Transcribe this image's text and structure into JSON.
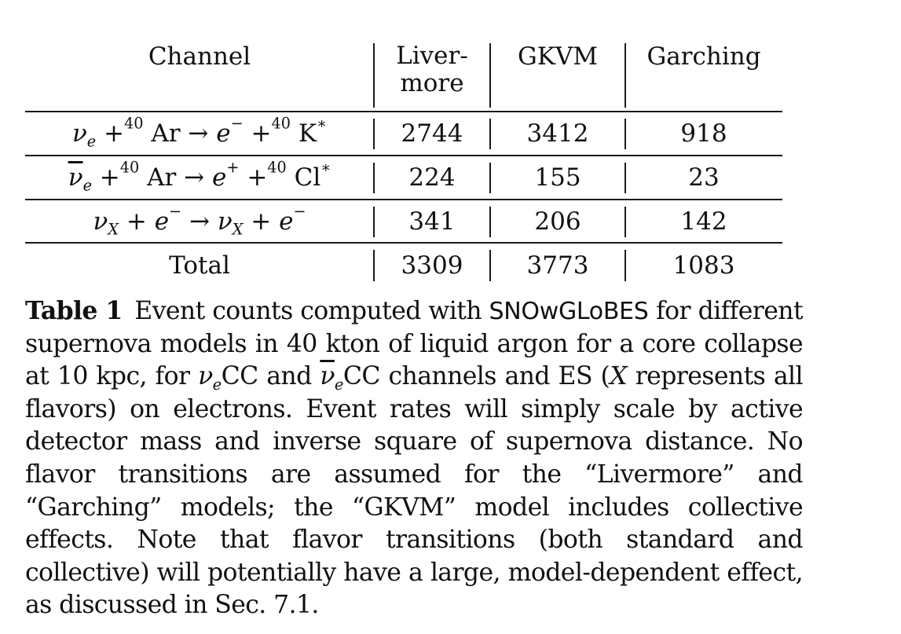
{
  "table": {
    "headers": [
      "Channel",
      "Liver-",
      "more",
      "GKVM",
      "Garching"
    ],
    "rows": [
      {
        "channel": {
          "lhs_particle": "ν",
          "lhs_sub": "e",
          "plus": "+",
          "mass_a": "40",
          "target": "Ar",
          "arrow": "→",
          "out_particle": "e",
          "out_charge": "−",
          "mass_b": "40",
          "product": "K",
          "star": "∗"
        },
        "livermore": "2744",
        "gkvm": "3412",
        "garching": "918"
      },
      {
        "channel": {
          "lhs_particle": "ν",
          "lhs_sub": "e",
          "plus": "+",
          "mass_a": "40",
          "target": "Ar",
          "arrow": "→",
          "out_particle": "e",
          "out_charge": "+",
          "mass_b": "40",
          "product": "Cl",
          "star": "∗"
        },
        "livermore": "224",
        "gkvm": "155",
        "garching": "23"
      },
      {
        "channel": {
          "lhs_particle": "ν",
          "lhs_sub": "X",
          "plus": "+",
          "electron": "e",
          "electron_charge": "−",
          "arrow": "→",
          "out_particle": "ν",
          "out_sub": "X",
          "plus2": "+",
          "electron2": "e",
          "electron2_charge": "−"
        },
        "livermore": "341",
        "gkvm": "206",
        "garching": "142"
      },
      {
        "channel_text": "Total",
        "livermore": "3309",
        "gkvm": "3773",
        "garching": "1083"
      }
    ]
  },
  "caption": {
    "label": "Table 1",
    "part1": "Event counts computed with",
    "software": "SNOwGLoBES",
    "part2": "for different supernova models in 40 kton of liquid argon for a core collapse at 10 kpc, for",
    "nu": "ν",
    "sub_e": "e",
    "cc1": "CC and",
    "cc2": "CC channels and ES (",
    "x": "X",
    "part3": "represents all flavors) on electrons. Event rates will simply scale by active detector mass and inverse square of supernova distance. No flavor transitions are assumed for the “Livermore” and “Garching” models; the “GKVM” model includes collective effects. Note that flavor transitions (both standard and collective) will potentially have a large, model-dependent effect, as discussed in Sec. 7.1."
  }
}
